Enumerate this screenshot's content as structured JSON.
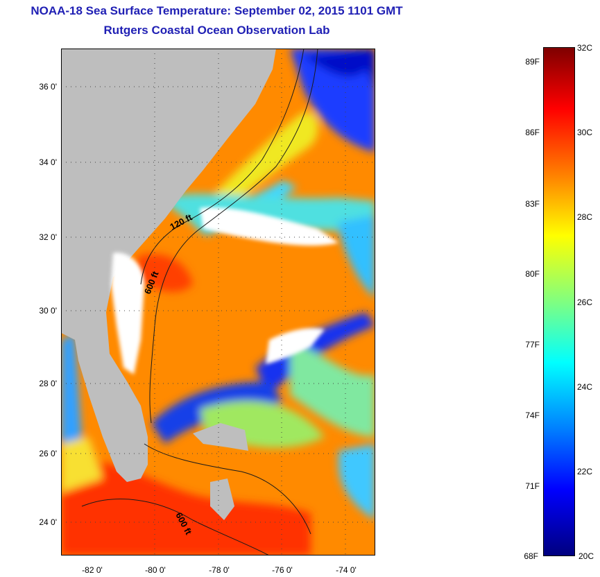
{
  "header": {
    "title": "NOAA-18 Sea Surface Temperature:  September 02, 2015 1101 GMT",
    "subtitle": "Rutgers Coastal Ocean Observation Lab"
  },
  "map": {
    "lat_labels": [
      "36 0'",
      "34 0'",
      "32 0'",
      "30 0'",
      "28 0'",
      "26 0'",
      "24 0'"
    ],
    "lon_labels": [
      "-82 0'",
      "-80 0'",
      "-78 0'",
      "-76 0'",
      "-74 0'"
    ],
    "isobath_labels": [
      "120 ft",
      "600 ft",
      "600 ft"
    ],
    "land_color": "#bebebe",
    "cloud_color": "#ffffff"
  },
  "colorbar": {
    "fahrenheit_labels": [
      "89F",
      "86F",
      "83F",
      "80F",
      "77F",
      "74F",
      "71F",
      "68F"
    ],
    "celsius_labels": [
      "32C",
      "30C",
      "28C",
      "26C",
      "24C",
      "22C",
      "20C"
    ],
    "color_stops": [
      "#00007f",
      "#0000ff",
      "#0080ff",
      "#00ffff",
      "#80ff80",
      "#ffff00",
      "#ff8000",
      "#ff0000",
      "#7f0000"
    ]
  }
}
